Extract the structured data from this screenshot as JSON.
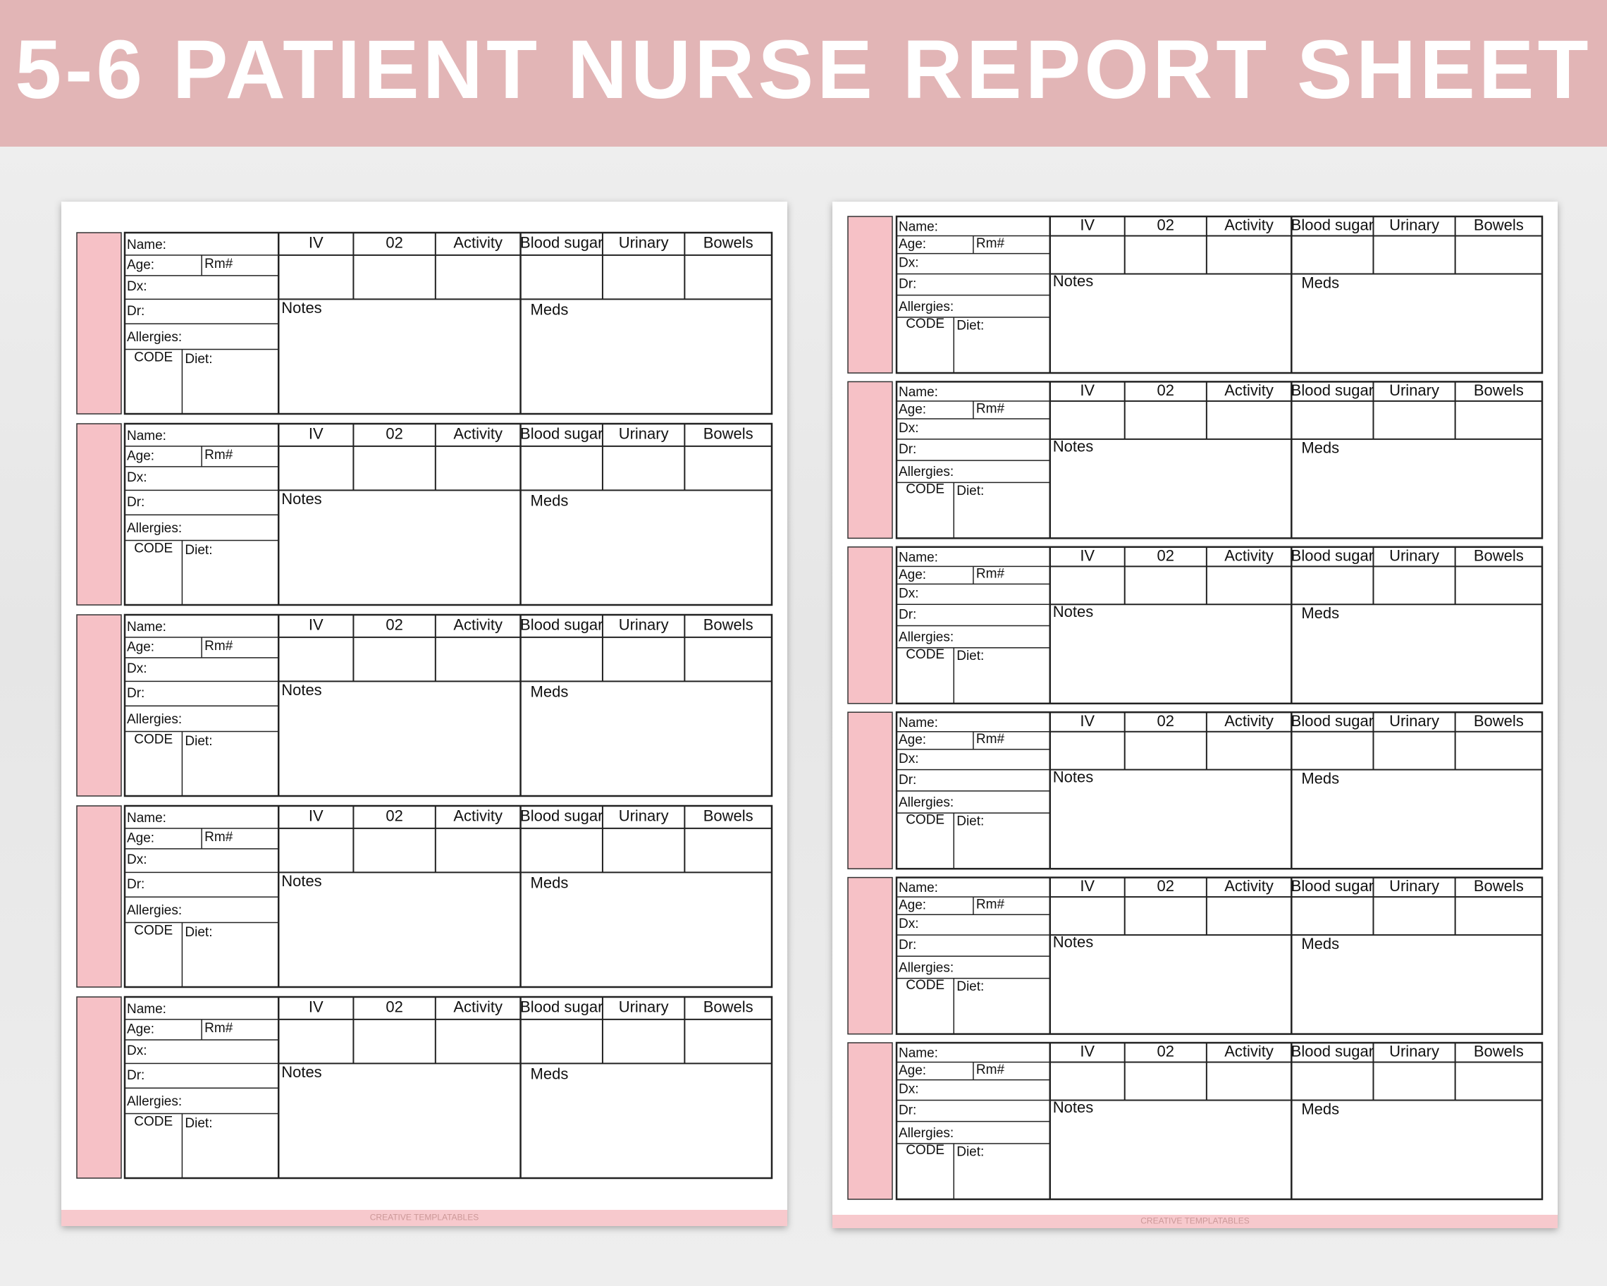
{
  "header": {
    "title": "5-6 PATIENT NURSE REPORT SHEET"
  },
  "sheets": [
    {
      "blocks": [
        {
          "name": "Name:",
          "age": "Age:",
          "rm": "Rm#",
          "dx": "Dx:",
          "dr": "Dr:",
          "allergies": "Allergies:",
          "code": "CODE",
          "diet": "Diet:",
          "iv": "IV",
          "o2": "02",
          "activity": "Activity",
          "blood_sugar": "Blood sugar",
          "urinary": "Urinary",
          "bowels": "Bowels",
          "notes": "Notes",
          "meds": "Meds"
        },
        {
          "name": "Name:",
          "age": "Age:",
          "rm": "Rm#",
          "dx": "Dx:",
          "dr": "Dr:",
          "allergies": "Allergies:",
          "code": "CODE",
          "diet": "Diet:",
          "iv": "IV",
          "o2": "02",
          "activity": "Activity",
          "blood_sugar": "Blood sugar",
          "urinary": "Urinary",
          "bowels": "Bowels",
          "notes": "Notes",
          "meds": "Meds"
        },
        {
          "name": "Name:",
          "age": "Age:",
          "rm": "Rm#",
          "dx": "Dx:",
          "dr": "Dr:",
          "allergies": "Allergies:",
          "code": "CODE",
          "diet": "Diet:",
          "iv": "IV",
          "o2": "02",
          "activity": "Activity",
          "blood_sugar": "Blood sugar",
          "urinary": "Urinary",
          "bowels": "Bowels",
          "notes": "Notes",
          "meds": "Meds"
        },
        {
          "name": "Name:",
          "age": "Age:",
          "rm": "Rm#",
          "dx": "Dx:",
          "dr": "Dr:",
          "allergies": "Allergies:",
          "code": "CODE",
          "diet": "Diet:",
          "iv": "IV",
          "o2": "02",
          "activity": "Activity",
          "blood_sugar": "Blood sugar",
          "urinary": "Urinary",
          "bowels": "Bowels",
          "notes": "Notes",
          "meds": "Meds"
        },
        {
          "name": "Name:",
          "age": "Age:",
          "rm": "Rm#",
          "dx": "Dx:",
          "dr": "Dr:",
          "allergies": "Allergies:",
          "code": "CODE",
          "diet": "Diet:",
          "iv": "IV",
          "o2": "02",
          "activity": "Activity",
          "blood_sugar": "Blood sugar",
          "urinary": "Urinary",
          "bowels": "Bowels",
          "notes": "Notes",
          "meds": "Meds"
        }
      ],
      "footer": "CREATIVE TEMPLATABLES"
    },
    {
      "blocks": [
        {
          "name": "Name:",
          "age": "Age:",
          "rm": "Rm#",
          "dx": "Dx:",
          "dr": "Dr:",
          "allergies": "Allergies:",
          "code": "CODE",
          "diet": "Diet:",
          "iv": "IV",
          "o2": "02",
          "activity": "Activity",
          "blood_sugar": "Blood sugar",
          "urinary": "Urinary",
          "bowels": "Bowels",
          "notes": "Notes",
          "meds": "Meds"
        },
        {
          "name": "Name:",
          "age": "Age:",
          "rm": "Rm#",
          "dx": "Dx:",
          "dr": "Dr:",
          "allergies": "Allergies:",
          "code": "CODE",
          "diet": "Diet:",
          "iv": "IV",
          "o2": "02",
          "activity": "Activity",
          "blood_sugar": "Blood sugar",
          "urinary": "Urinary",
          "bowels": "Bowels",
          "notes": "Notes",
          "meds": "Meds"
        },
        {
          "name": "Name:",
          "age": "Age:",
          "rm": "Rm#",
          "dx": "Dx:",
          "dr": "Dr:",
          "allergies": "Allergies:",
          "code": "CODE",
          "diet": "Diet:",
          "iv": "IV",
          "o2": "02",
          "activity": "Activity",
          "blood_sugar": "Blood sugar",
          "urinary": "Urinary",
          "bowels": "Bowels",
          "notes": "Notes",
          "meds": "Meds"
        },
        {
          "name": "Name:",
          "age": "Age:",
          "rm": "Rm#",
          "dx": "Dx:",
          "dr": "Dr:",
          "allergies": "Allergies:",
          "code": "CODE",
          "diet": "Diet:",
          "iv": "IV",
          "o2": "02",
          "activity": "Activity",
          "blood_sugar": "Blood sugar",
          "urinary": "Urinary",
          "bowels": "Bowels",
          "notes": "Notes",
          "meds": "Meds"
        },
        {
          "name": "Name:",
          "age": "Age:",
          "rm": "Rm#",
          "dx": "Dx:",
          "dr": "Dr:",
          "allergies": "Allergies:",
          "code": "CODE",
          "diet": "Diet:",
          "iv": "IV",
          "o2": "02",
          "activity": "Activity",
          "blood_sugar": "Blood sugar",
          "urinary": "Urinary",
          "bowels": "Bowels",
          "notes": "Notes",
          "meds": "Meds"
        },
        {
          "name": "Name:",
          "age": "Age:",
          "rm": "Rm#",
          "dx": "Dx:",
          "dr": "Dr:",
          "allergies": "Allergies:",
          "code": "CODE",
          "diet": "Diet:",
          "iv": "IV",
          "o2": "02",
          "activity": "Activity",
          "blood_sugar": "Blood sugar",
          "urinary": "Urinary",
          "bowels": "Bowels",
          "notes": "Notes",
          "meds": "Meds"
        }
      ],
      "footer": "CREATIVE TEMPLATABLES"
    }
  ]
}
